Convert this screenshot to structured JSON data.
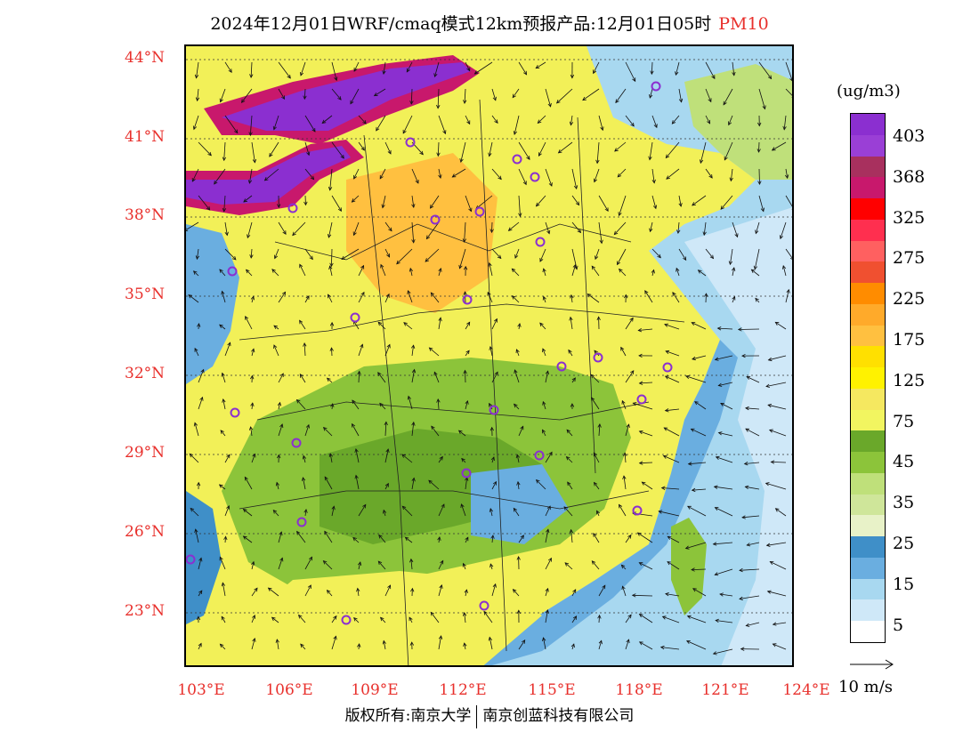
{
  "title": {
    "text": "2024年12月01日WRF/cmaq模式12km预报产品:12月01日05时",
    "pollutant": "PM10"
  },
  "latitude_labels": [
    "44°N",
    "41°N",
    "38°N",
    "35°N",
    "32°N",
    "29°N",
    "26°N",
    "23°N"
  ],
  "longitude_labels": [
    "103°E",
    "106°E",
    "109°E",
    "112°E",
    "115°E",
    "118°E",
    "121°E",
    "124°E"
  ],
  "colorbar": {
    "unit": "(ug/m3)",
    "labels": [
      "403",
      "368",
      "325",
      "275",
      "225",
      "175",
      "125",
      "75",
      "45",
      "35",
      "25",
      "15",
      "5"
    ],
    "colors": [
      "#8b2fd0",
      "#9a3fd6",
      "#a8305e",
      "#c8186c",
      "#ff0000",
      "#ff2f4f",
      "#ff6060",
      "#f05030",
      "#ff8c00",
      "#ffaa2a",
      "#ffc040",
      "#ffe000",
      "#fff200",
      "#f5e860",
      "#f2f560",
      "#6aa82a",
      "#8cc43a",
      "#bfe07a",
      "#cfe69a",
      "#e8f2c8",
      "#3f8fc8",
      "#6aaee0",
      "#a8d8f0",
      "#cfe8f8",
      "#ffffff"
    ]
  },
  "vector_scale_label": "10 m/s",
  "credit": {
    "left": "版权所有:南京大学",
    "right": "南京创蓝科技有限公司"
  },
  "map": {
    "background": "#f5e65a",
    "ocean_color": "#9fd2ee",
    "high_pollution_color": "#8b2fd0",
    "city_marker_color": "#8b2fd0"
  }
}
